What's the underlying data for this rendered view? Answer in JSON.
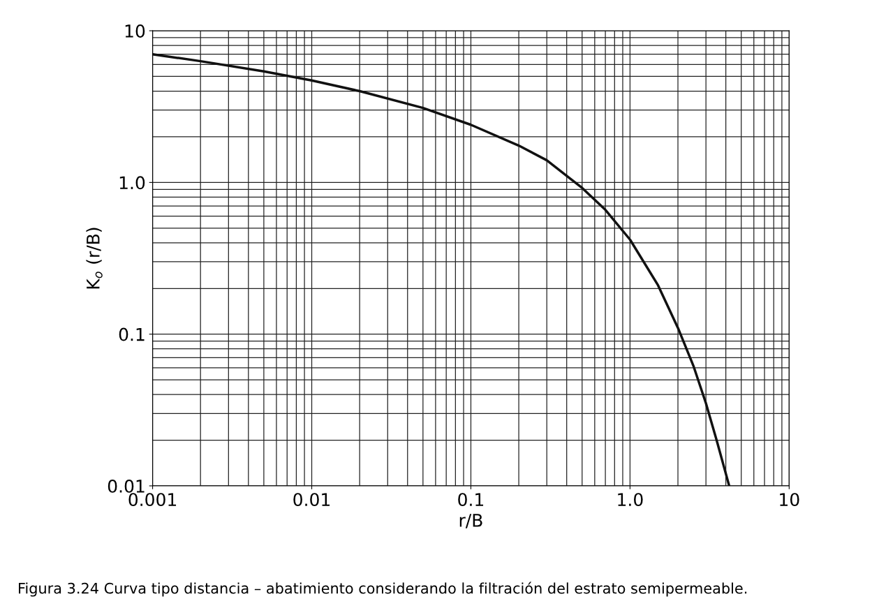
{
  "chart_data": {
    "type": "line",
    "xlabel": "r/B",
    "ylabel": "K$_{o}$ (r/B)",
    "x": [
      0.001,
      0.002,
      0.005,
      0.01,
      0.02,
      0.05,
      0.1,
      0.2,
      0.3,
      0.5,
      0.7,
      1.0,
      1.5,
      2.0,
      2.5,
      3.0,
      3.5,
      4.2
    ],
    "series": [
      {
        "color": "#111111",
        "values": [
          7.0,
          6.3,
          5.4,
          4.7,
          4.0,
          3.1,
          2.4,
          1.75,
          1.4,
          0.92,
          0.66,
          0.42,
          0.21,
          0.11,
          0.062,
          0.035,
          0.02,
          0.01
        ]
      }
    ],
    "log": "xy",
    "xlim": [
      0.001,
      10
    ],
    "ylim": [
      0.01,
      10
    ],
    "xticks": [
      0.001,
      0.01,
      0.1,
      {
        "value": 1,
        "label": "1.0"
      },
      10
    ],
    "yticks": [
      0.01,
      0.1,
      {
        "value": 1,
        "label": "1.0"
      },
      10
    ],
    "grid": true,
    "legend": false,
    "annotations": [
      "Figura 3.24 Curva tipo distancia – abatimiento considerando la filtración del estrato semipermeable."
    ]
  }
}
